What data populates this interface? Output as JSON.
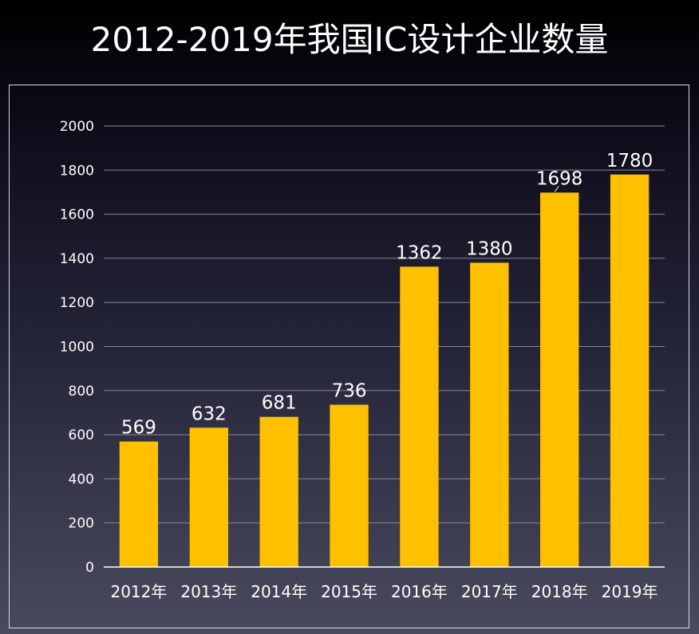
{
  "colors": {
    "bar": "#FFC000",
    "grid": "#8a8a96",
    "axis": "#ffffff",
    "text": "#ffffff"
  },
  "chart_data": {
    "type": "bar",
    "title": "2012-2019年我国IC设计企业数量",
    "xlabel": "",
    "ylabel": "",
    "ylim": [
      0,
      2000
    ],
    "yticks": [
      0,
      200,
      400,
      600,
      800,
      1000,
      1200,
      1400,
      1600,
      1800,
      2000
    ],
    "grid": true,
    "legend": "none",
    "categories": [
      "2012年",
      "2013年",
      "2014年",
      "2015年",
      "2016年",
      "2017年",
      "2018年",
      "2019年"
    ],
    "values": [
      569,
      632,
      681,
      736,
      1362,
      1380,
      1698,
      1780
    ],
    "data_labels": [
      "569",
      "632",
      "681",
      "736",
      "1362",
      "1380",
      "1698",
      "1780"
    ]
  }
}
